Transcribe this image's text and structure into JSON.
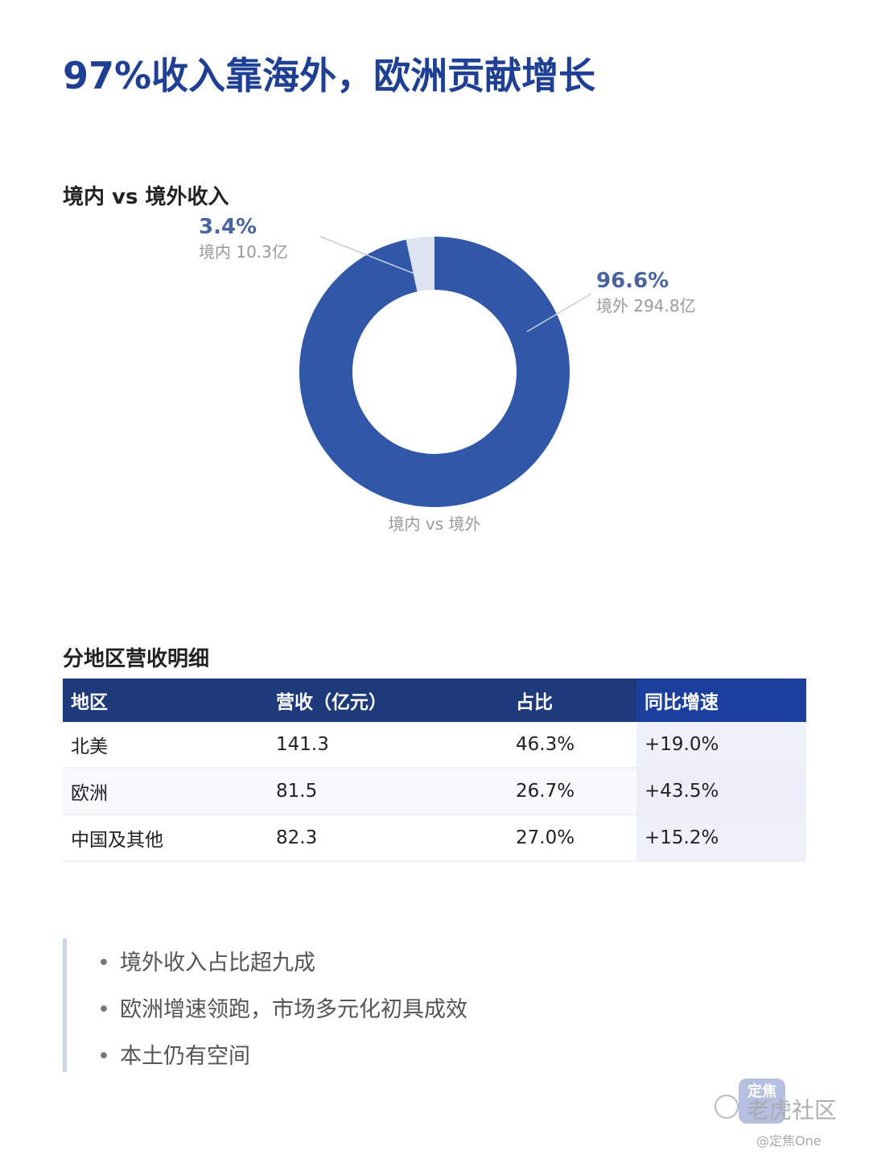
{
  "page": {
    "title": "97%收入靠海外，欧洲贡献增长"
  },
  "donut_section": {
    "title": "境内 vs 境外收入"
  },
  "table_section": {
    "title": "分地区营收明细",
    "headers": [
      "地区",
      "营收（亿元）",
      "占比",
      "同比增速"
    ],
    "rows": [
      [
        "北美",
        "141.3",
        "46.3%",
        "+19.0%"
      ],
      [
        "欧洲",
        "81.5",
        "26.7%",
        "+43.5%"
      ],
      [
        "中国及其他",
        "82.3",
        "27.0%",
        "+15.2%"
      ]
    ]
  },
  "bullets": [
    "境外收入占比超九成",
    "欧洲增速领跑，市场多元化初具成效",
    "本土仍有空间"
  ],
  "watermark": {
    "logo_text": "定焦",
    "name": "老虎社区",
    "handle": "@定焦One"
  },
  "colors": {
    "title": "#1e3f94",
    "overseas": "#3157a8",
    "domestic": "#dde3f0",
    "label_pct": "#4a64a0",
    "label_sub": "#999999"
  },
  "chart_data": {
    "type": "pie",
    "donut": true,
    "caption": "境内 vs 境外",
    "slices": [
      {
        "name": "境内",
        "value": 10.3,
        "percent_label": "3.4%",
        "sub_label": "境内 10.3亿"
      },
      {
        "name": "境外",
        "value": 294.8,
        "percent_label": "96.6%",
        "sub_label": "境外 294.8亿"
      }
    ]
  }
}
